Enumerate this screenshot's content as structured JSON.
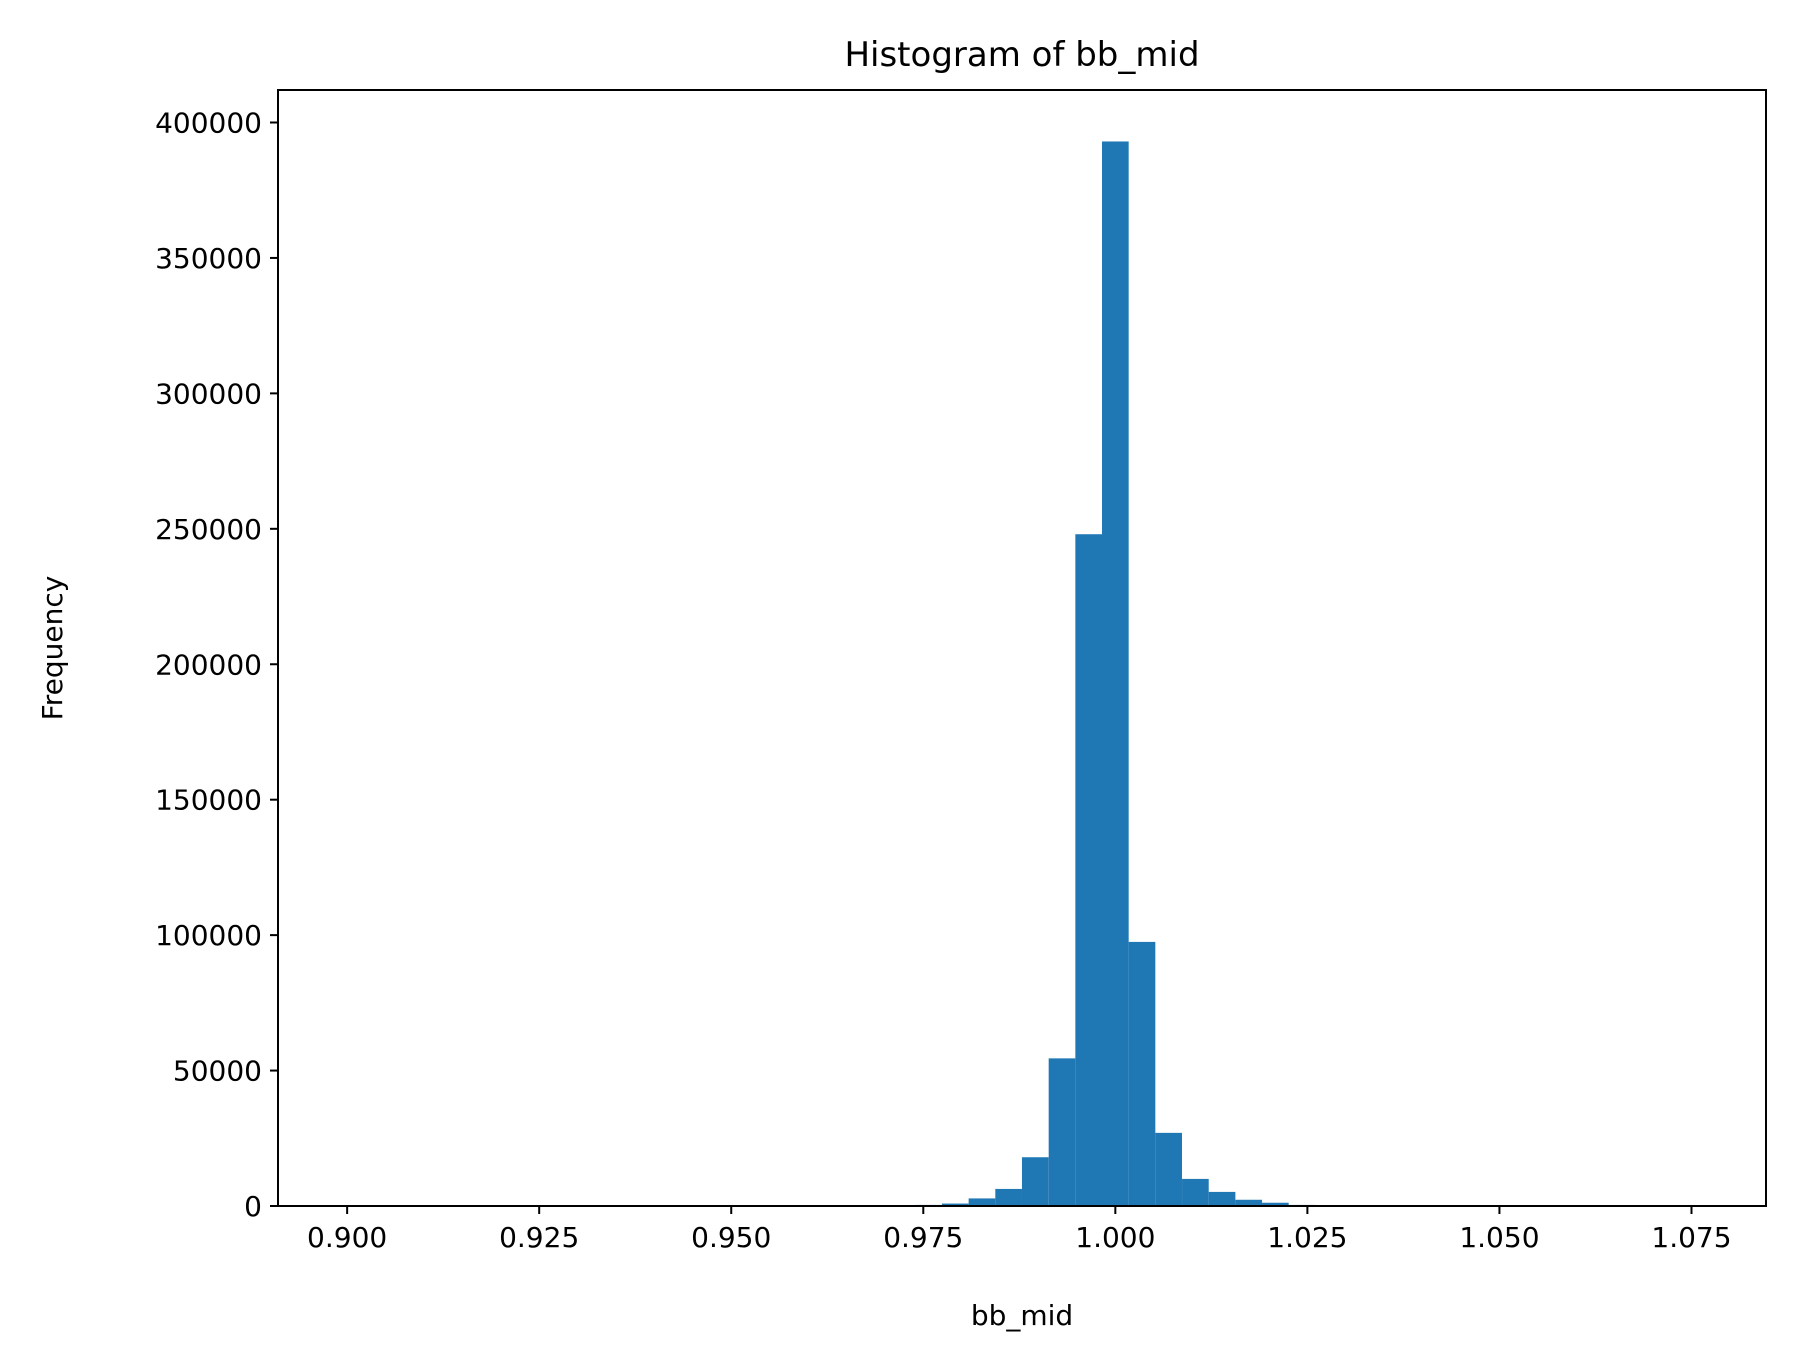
{
  "chart_data": {
    "type": "bar",
    "title": "Histogram of bb_mid",
    "xlabel": "bb_mid",
    "ylabel": "Frequency",
    "xlim": [
      0.891,
      1.0847
    ],
    "ylim": [
      0,
      412000
    ],
    "bar_width": 0.00347,
    "grid": false,
    "legend": "none",
    "colors": {
      "bar": "#1f77b4",
      "axis": "#000000",
      "background": "#ffffff"
    },
    "xticks": [
      {
        "value": 0.9,
        "label": "0.900"
      },
      {
        "value": 0.925,
        "label": "0.925"
      },
      {
        "value": 0.95,
        "label": "0.950"
      },
      {
        "value": 0.975,
        "label": "0.975"
      },
      {
        "value": 1.0,
        "label": "1.000"
      },
      {
        "value": 1.025,
        "label": "1.025"
      },
      {
        "value": 1.05,
        "label": "1.050"
      },
      {
        "value": 1.075,
        "label": "1.075"
      }
    ],
    "yticks": [
      {
        "value": 0,
        "label": "0"
      },
      {
        "value": 50000,
        "label": "50000"
      },
      {
        "value": 100000,
        "label": "100000"
      },
      {
        "value": 150000,
        "label": "150000"
      },
      {
        "value": 200000,
        "label": "200000"
      },
      {
        "value": 250000,
        "label": "250000"
      },
      {
        "value": 300000,
        "label": "300000"
      },
      {
        "value": 350000,
        "label": "350000"
      },
      {
        "value": 400000,
        "label": "400000"
      }
    ],
    "bins": [
      {
        "x": 0.9757,
        "value": 400
      },
      {
        "x": 0.97917,
        "value": 900
      },
      {
        "x": 0.98264,
        "value": 2800
      },
      {
        "x": 0.98611,
        "value": 6300
      },
      {
        "x": 0.98958,
        "value": 18000
      },
      {
        "x": 0.99306,
        "value": 54500
      },
      {
        "x": 0.99653,
        "value": 248000
      },
      {
        "x": 1.0,
        "value": 393000
      },
      {
        "x": 1.00347,
        "value": 97500
      },
      {
        "x": 1.00694,
        "value": 27000
      },
      {
        "x": 1.01042,
        "value": 10000
      },
      {
        "x": 1.01389,
        "value": 5200
      },
      {
        "x": 1.01736,
        "value": 2300
      },
      {
        "x": 1.02083,
        "value": 1200
      },
      {
        "x": 1.02431,
        "value": 400
      }
    ]
  }
}
